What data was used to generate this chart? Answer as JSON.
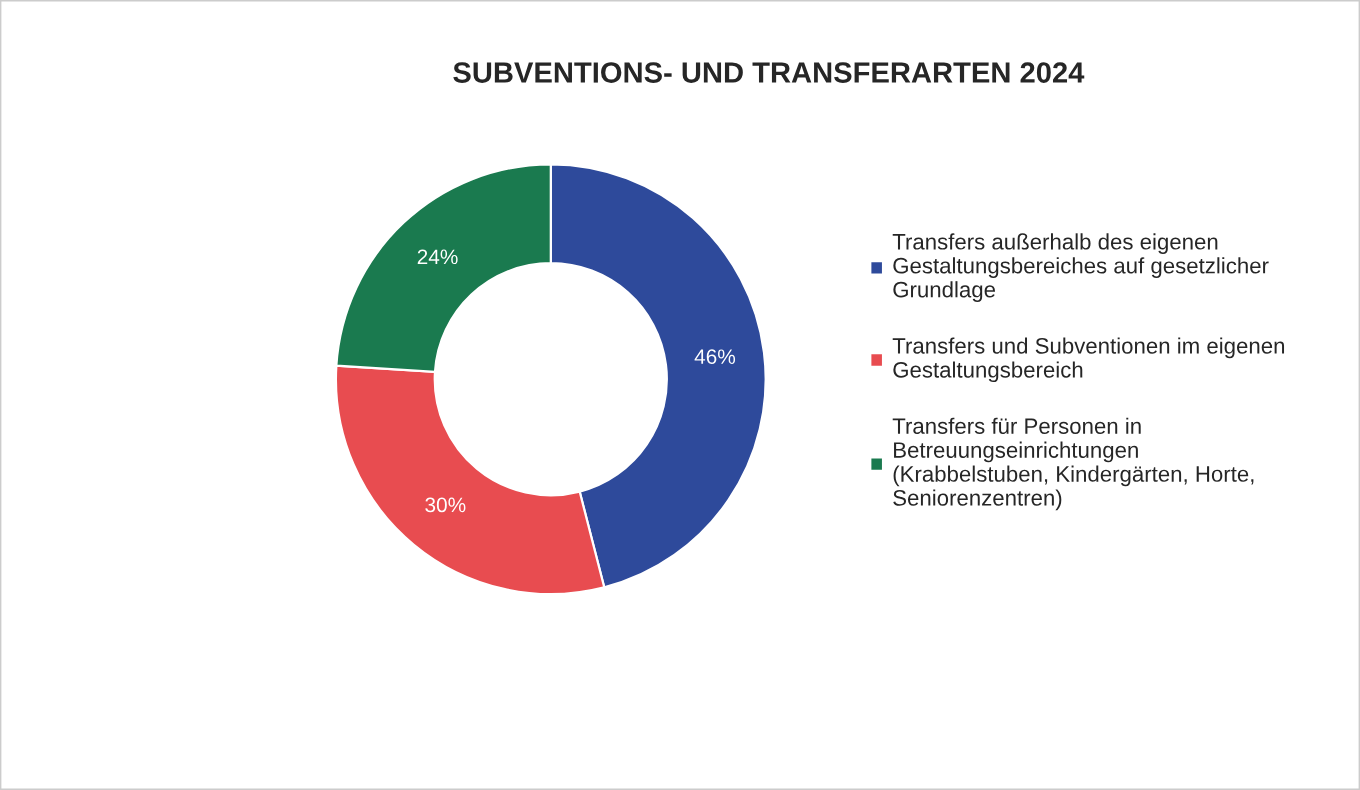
{
  "chart_data": {
    "type": "donut",
    "title": "SUBVENTIONS- UND TRANSFERARTEN 2024",
    "categories": [
      "Transfers außerhalb des eigenen Gestaltungsbereiches auf gesetzlicher Grundlage",
      "Transfers und Subventionen im eigenen Gestaltungsbereich",
      "Transfers für Personen in Betreuungseinrichtungen (Krabbelstuben, Kindergärten, Horte, Seniorenzentren)"
    ],
    "values": [
      46,
      30,
      24
    ],
    "value_labels": [
      "46%",
      "30%",
      "24%"
    ],
    "colors": [
      "#2e4a9b",
      "#e84c50",
      "#1a7a4f"
    ],
    "legend": "right"
  }
}
